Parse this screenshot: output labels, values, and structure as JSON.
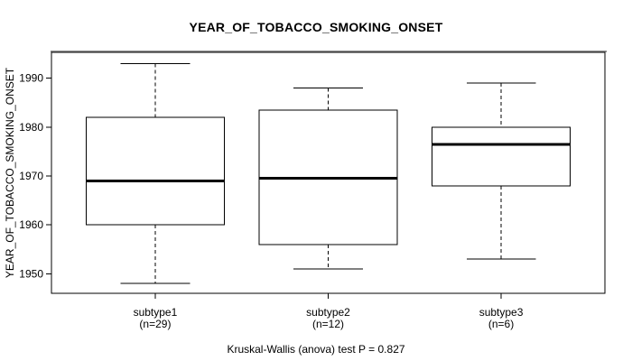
{
  "title": "YEAR_OF_TOBACCO_SMOKING_ONSET",
  "caption": "Kruskal-Wallis (anova) test P = 0.827",
  "chart_data": {
    "type": "boxplot",
    "title": "YEAR_OF_TOBACCO_SMOKING_ONSET",
    "ylabel": "YEAR_OF_TOBACCO_SMOKING_ONSET",
    "xlabel": "",
    "ylim": [
      1946,
      1995.3
    ],
    "yticks": [
      1950,
      1960,
      1970,
      1980,
      1990
    ],
    "grid": false,
    "legend": "none",
    "annotation": "Kruskal-Wallis (anova) test P = 0.827",
    "test_name": "Kruskal-Wallis (anova) test",
    "p_value": "0.827",
    "box_stroke_color": "#000000",
    "box_fill_color": "#ffffff",
    "categories": [
      "subtype1",
      "subtype2",
      "subtype3"
    ],
    "groups": [
      {
        "label": "subtype1",
        "sublabel": "(n=29)",
        "n": 29,
        "whisker_low": 1948,
        "q1": 1960,
        "median": 1969,
        "q3": 1982,
        "whisker_high": 1993
      },
      {
        "label": "subtype2",
        "sublabel": "(n=12)",
        "n": 12,
        "whisker_low": 1951,
        "q1": 1956,
        "median": 1969.5,
        "q3": 1983.5,
        "whisker_high": 1988
      },
      {
        "label": "subtype3",
        "sublabel": "(n=6)",
        "n": 6,
        "whisker_low": 1953,
        "q1": 1968,
        "median": 1976.5,
        "q3": 1980,
        "whisker_high": 1989
      }
    ]
  }
}
